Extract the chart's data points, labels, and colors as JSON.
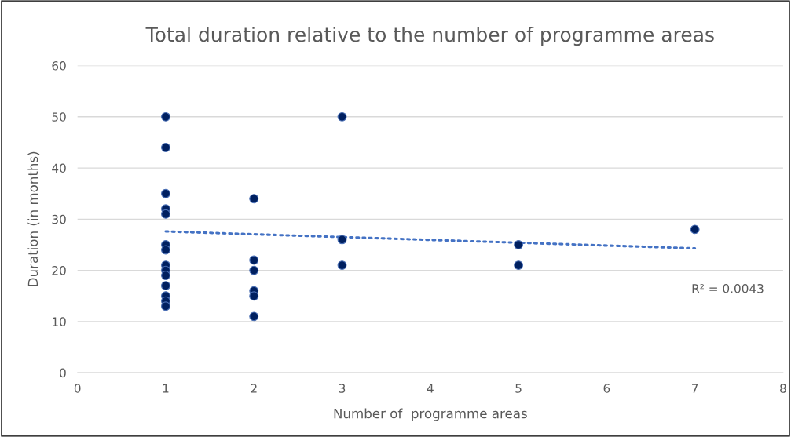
{
  "chart_data": {
    "type": "scatter",
    "title": "Total duration relative to the number of programme areas",
    "xlabel": "Number of  programme areas",
    "ylabel": "Duration (in months)",
    "series": [
      {
        "color": "#002060",
        "x": [
          1,
          1,
          1,
          1,
          1,
          1,
          1,
          1,
          1,
          1,
          1,
          1,
          1,
          1,
          2,
          2,
          2,
          2,
          2,
          2,
          3,
          3,
          3,
          5,
          5,
          7
        ],
        "values": [
          50,
          44,
          35,
          32,
          31,
          25,
          24,
          21,
          20,
          19,
          17,
          15,
          14,
          13,
          34,
          22,
          20,
          16,
          15,
          11,
          50,
          26,
          21,
          25,
          21,
          28
        ],
        "marker": "circle"
      },
      {
        "type": "line",
        "color": "#4472c4",
        "x": [
          1,
          7
        ],
        "values": [
          27.6,
          24.3
        ],
        "line_style": "dotted"
      }
    ],
    "annotations": [
      "R² = 0.0043"
    ],
    "xlim": [
      0,
      8
    ],
    "xticks": [
      0,
      1,
      2,
      3,
      4,
      5,
      6,
      7,
      8
    ],
    "ylim": [
      0,
      60
    ],
    "yticks": [
      0,
      10,
      20,
      30,
      40,
      50,
      60
    ],
    "grid": "y",
    "legend": false
  }
}
